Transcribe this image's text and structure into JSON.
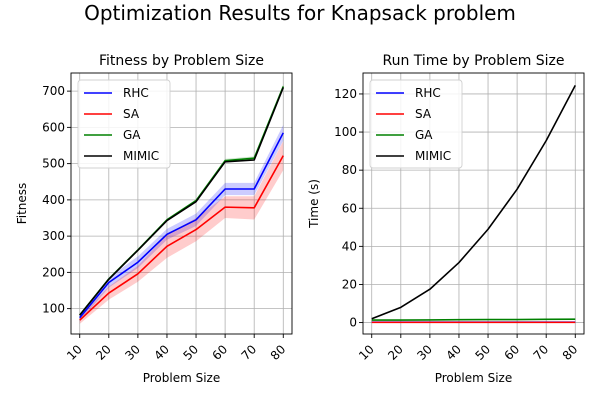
{
  "figure_title": "Optimization Results for Knapsack problem",
  "chart_data": [
    {
      "type": "line",
      "title": "Fitness by Problem Size",
      "xlabel": "Problem Size",
      "ylabel": "Fitness",
      "x": [
        10,
        20,
        30,
        40,
        50,
        60,
        70,
        80
      ],
      "x_tick_labels": [
        "10",
        "20",
        "30",
        "40",
        "50",
        "60",
        "70",
        "80"
      ],
      "xlim": [
        7,
        83
      ],
      "ylim": [
        30,
        750
      ],
      "yticks": [
        100,
        200,
        300,
        400,
        500,
        600,
        700
      ],
      "grid": true,
      "legend": "top-left",
      "series": [
        {
          "name": "RHC",
          "color": "#0000ff",
          "values": [
            75,
            172,
            228,
            305,
            345,
            430,
            430,
            585
          ],
          "band": [
            10,
            14,
            16,
            15,
            17,
            17,
            17,
            22
          ]
        },
        {
          "name": "SA",
          "color": "#ff0000",
          "values": [
            68,
            143,
            196,
            272,
            318,
            380,
            378,
            522
          ],
          "band": [
            10,
            18,
            22,
            32,
            32,
            30,
            32,
            40
          ]
        },
        {
          "name": "GA",
          "color": "#008000",
          "values": [
            82,
            182,
            262,
            345,
            398,
            508,
            515,
            713
          ],
          "band": [
            3,
            3,
            3,
            3,
            3,
            5,
            5,
            6
          ]
        },
        {
          "name": "MIMIC",
          "color": "#000000",
          "values": [
            82,
            181,
            261,
            343,
            395,
            505,
            510,
            710
          ],
          "band": [
            0,
            0,
            0,
            0,
            0,
            0,
            0,
            0
          ]
        }
      ]
    },
    {
      "type": "line",
      "title": "Run Time by Problem Size",
      "xlabel": "Problem Size",
      "ylabel": "Time (s)",
      "x": [
        10,
        20,
        30,
        40,
        50,
        60,
        70,
        80
      ],
      "x_tick_labels": [
        "10",
        "20",
        "30",
        "40",
        "50",
        "60",
        "70",
        "80"
      ],
      "xlim": [
        7,
        83
      ],
      "ylim": [
        -6,
        131
      ],
      "yticks": [
        0,
        20,
        40,
        60,
        80,
        100,
        120
      ],
      "grid": true,
      "legend": "top-left",
      "series": [
        {
          "name": "RHC",
          "color": "#0000ff",
          "values": [
            0.2,
            0.2,
            0.2,
            0.2,
            0.2,
            0.2,
            0.2,
            0.2
          ],
          "band": [
            0,
            0,
            0,
            0,
            0,
            0,
            0,
            0
          ]
        },
        {
          "name": "SA",
          "color": "#ff0000",
          "values": [
            0.1,
            0.1,
            0.1,
            0.1,
            0.1,
            0.1,
            0.1,
            0.1
          ],
          "band": [
            0,
            0,
            0,
            0,
            0,
            0,
            0,
            0
          ]
        },
        {
          "name": "GA",
          "color": "#008000",
          "values": [
            1.3,
            1.3,
            1.4,
            1.5,
            1.6,
            1.6,
            1.7,
            1.8
          ],
          "band": [
            0,
            0,
            0,
            0,
            0,
            0,
            0,
            0
          ]
        },
        {
          "name": "MIMIC",
          "color": "#000000",
          "values": [
            2,
            8,
            17.5,
            31.5,
            49,
            70,
            95.5,
            124.5
          ],
          "band": [
            0,
            0,
            0,
            0,
            0,
            0,
            0,
            0
          ]
        }
      ]
    }
  ]
}
